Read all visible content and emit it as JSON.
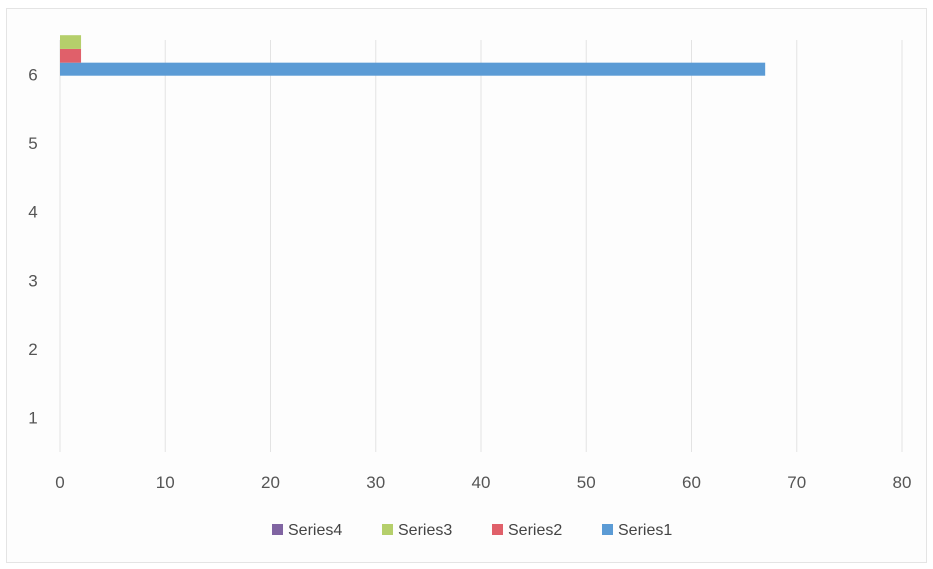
{
  "chart_data": {
    "type": "bar",
    "orientation": "horizontal",
    "stacked": true,
    "title": "",
    "xlabel": "",
    "ylabel": "",
    "xlim": [
      0,
      80
    ],
    "ylim": [
      0.5,
      6.5
    ],
    "x_ticks": [
      "0",
      "10",
      "20",
      "30",
      "40",
      "50",
      "60",
      "70",
      "80"
    ],
    "y_ticks": [
      "1",
      "2",
      "3",
      "4",
      "5",
      "6"
    ],
    "categories": [
      "1",
      "2",
      "3",
      "4",
      "5",
      "6"
    ],
    "grid": "vertical",
    "legend_position": "bottom",
    "legend_order": [
      "Series4",
      "Series3",
      "Series2",
      "Series1"
    ],
    "series": [
      {
        "name": "Series1",
        "color": "#5b9bd5",
        "values": [
          0,
          0,
          0,
          0,
          0,
          67
        ]
      },
      {
        "name": "Series2",
        "color": "#e0606a",
        "values": [
          0,
          0,
          0,
          0,
          0,
          2
        ]
      },
      {
        "name": "Series3",
        "color": "#b5cf6b",
        "values": [
          0,
          0,
          0,
          0,
          0,
          2
        ]
      },
      {
        "name": "Series4",
        "color": "#8064a2",
        "values": [
          0,
          0,
          0,
          0,
          0,
          0
        ]
      }
    ]
  }
}
